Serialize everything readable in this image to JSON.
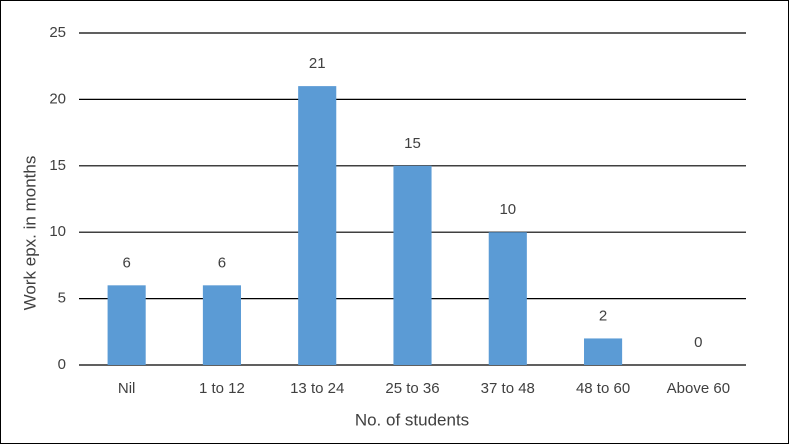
{
  "chart_data": {
    "type": "bar",
    "categories": [
      "Nil",
      "1 to 12",
      "13 to 24",
      "25 to 36",
      "37 to 48",
      "48 to 60",
      "Above 60"
    ],
    "values": [
      6,
      6,
      21,
      15,
      10,
      2,
      0
    ],
    "color": "#5b9bd5",
    "x_label": "No. of students",
    "y_label": "Work epx. in months",
    "ylim": [
      0,
      25
    ],
    "yticks": [
      0,
      5,
      10,
      15,
      20,
      25
    ],
    "grid": true
  }
}
